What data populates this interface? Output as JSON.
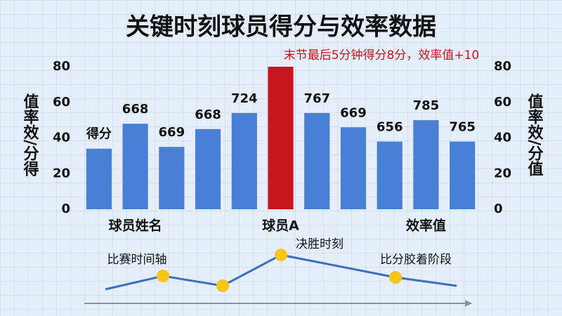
{
  "chart_data": {
    "type": "bar",
    "title": "关键时刻球员得分与效率数据",
    "categories": [
      null,
      "球员姓名",
      null,
      null,
      null,
      "球员A",
      null,
      null,
      null,
      "效率值",
      null
    ],
    "values": [
      34,
      48,
      35,
      45,
      54,
      80,
      54,
      46,
      38,
      50,
      38
    ],
    "bar_texts": [
      "得分",
      "668",
      "669",
      "668",
      "724",
      null,
      "767",
      "669",
      "656",
      "785",
      "765"
    ],
    "colors": [
      "#4a7fd6",
      "#4a7fd6",
      "#4a7fd6",
      "#4a7fd6",
      "#4a7fd6",
      "#c8141b",
      "#4a7fd6",
      "#4a7fd6",
      "#4a7fd6",
      "#4a7fd6",
      "#4a7fd6"
    ],
    "annotation": "末节最后5分钟得分8分，效率值+10",
    "y_label": "值率效/分得",
    "y2_label": "值率效/分值",
    "ylim": [
      0,
      80
    ],
    "yticks": [
      0,
      20,
      40,
      60,
      80
    ],
    "y2lim": [
      0,
      80
    ],
    "y2ticks": [
      0,
      20,
      40,
      60,
      80
    ]
  },
  "timeline": {
    "labels": [
      "比赛时间轴",
      "决胜时刻",
      "比分胶着阶段"
    ]
  }
}
